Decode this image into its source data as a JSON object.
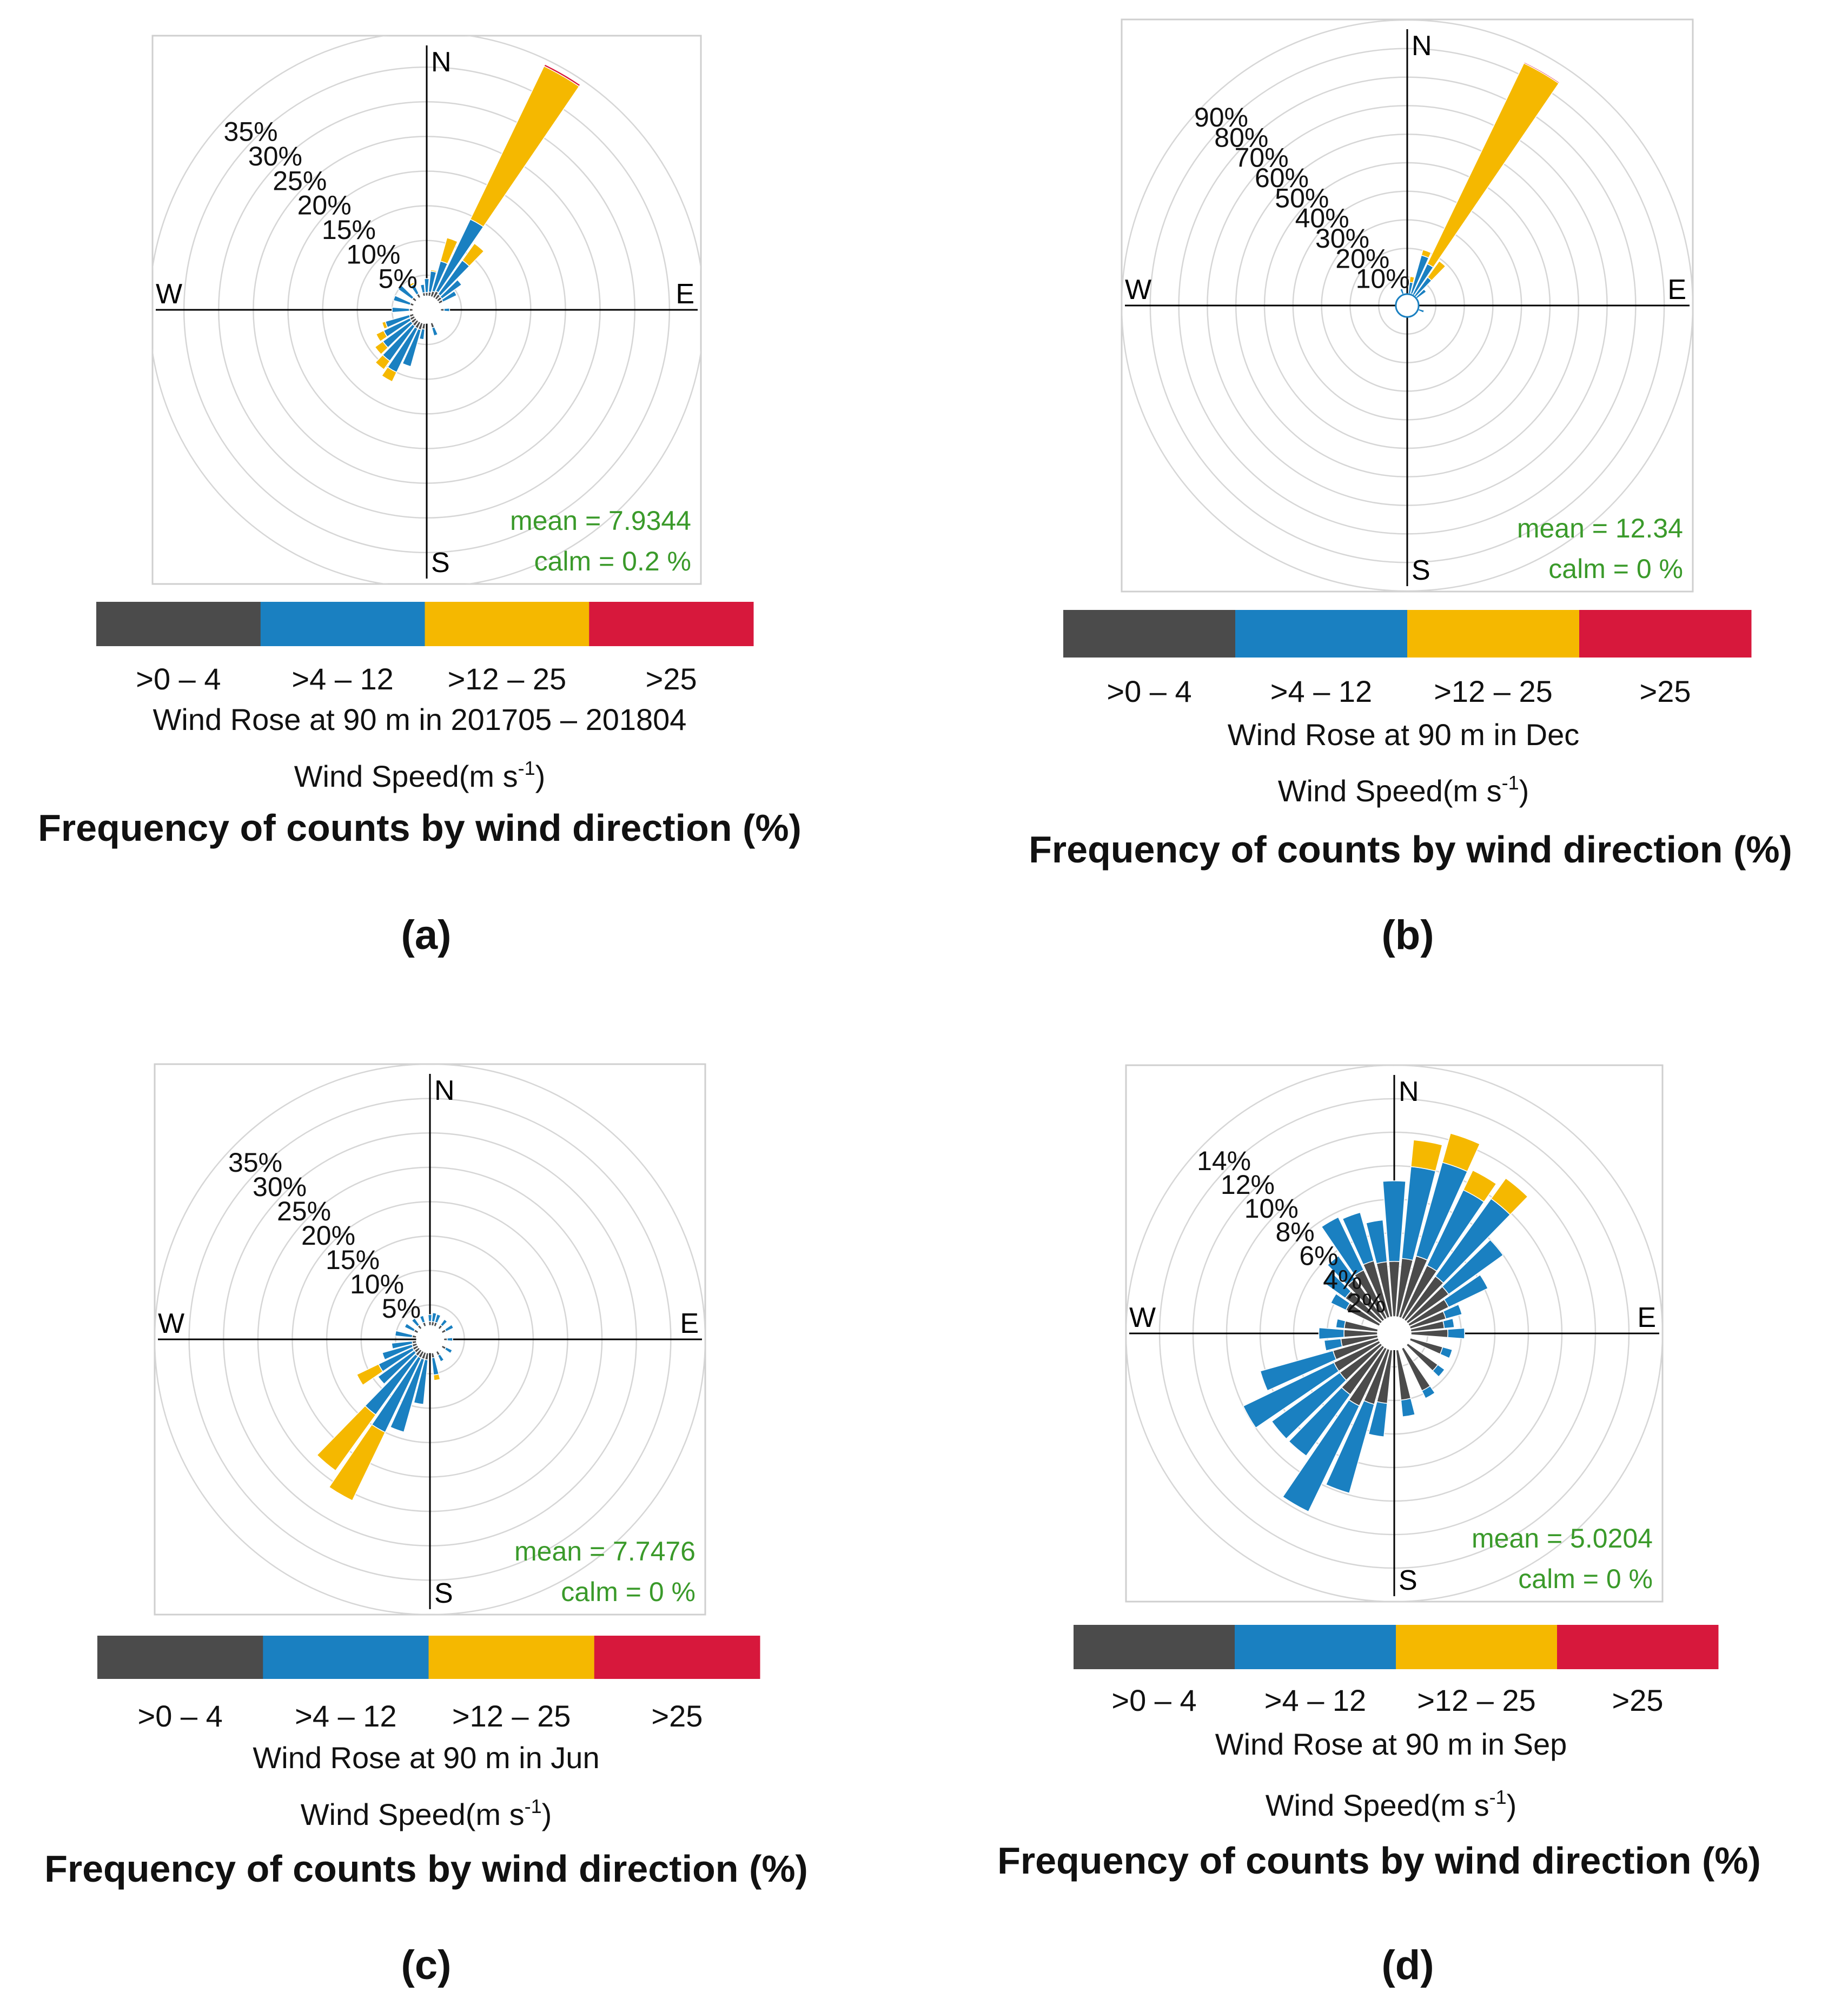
{
  "colors": {
    "speed_bins": [
      "#4b4b4b",
      "#1a80c1",
      "#f5b800",
      "#d7183c"
    ],
    "mean_text": "#3a9a2a",
    "grid": "#d6d6d6",
    "axis": "#000000"
  },
  "chart_data": [
    {
      "type": "wind-rose",
      "panel_label": "(a)",
      "title": "Wind Rose at 90 m in 201705 – 201804",
      "footer": "Frequency of counts by wind direction (%)",
      "legend_title_text": "Wind Speed(m s",
      "legend_title_sup": "-1",
      "legend_title_end": ")",
      "legend": [
        ">0 – 4",
        ">4 – 12",
        ">12 – 25",
        ">25"
      ],
      "directions": [
        "N",
        "E",
        "S",
        "W"
      ],
      "mean_label": "mean  =  7.9344",
      "calm_label": "calm =  0.2 %",
      "ring_labels": [
        "5%",
        "10%",
        "15%",
        "20%",
        "25%",
        "30%",
        "35%"
      ],
      "ring_step": 5,
      "rmax": 40,
      "calm_radius": 2.0,
      "petals": [
        {
          "dir": 0,
          "values": [
            0.5,
            2.0,
            0.0,
            0.0
          ]
        },
        {
          "dir": 10,
          "values": [
            0.6,
            3.0,
            0.2,
            0.0
          ]
        },
        {
          "dir": 20,
          "values": [
            0.8,
            4.5,
            3.5,
            0.0
          ]
        },
        {
          "dir": 30,
          "values": [
            1.0,
            11.5,
            24.5,
            0.3
          ]
        },
        {
          "dir": 40,
          "values": [
            0.8,
            6.0,
            3.0,
            0.0
          ]
        },
        {
          "dir": 50,
          "values": [
            0.7,
            3.5,
            0.0,
            0.0
          ]
        },
        {
          "dir": 60,
          "values": [
            0.6,
            2.2,
            0.0,
            0.0
          ]
        },
        {
          "dir": 90,
          "values": [
            0.5,
            0.8,
            0.0,
            0.0
          ]
        },
        {
          "dir": 160,
          "values": [
            0.7,
            1.2,
            0.0,
            0.0
          ]
        },
        {
          "dir": 190,
          "values": [
            0.8,
            1.5,
            0.0,
            0.0
          ]
        },
        {
          "dir": 200,
          "values": [
            1.0,
            5.5,
            0.0,
            0.0
          ]
        },
        {
          "dir": 210,
          "values": [
            1.0,
            7.0,
            1.5,
            0.0
          ]
        },
        {
          "dir": 220,
          "values": [
            0.9,
            6.2,
            1.5,
            0.0
          ]
        },
        {
          "dir": 230,
          "values": [
            0.8,
            5.0,
            1.4,
            0.0
          ]
        },
        {
          "dir": 240,
          "values": [
            0.7,
            4.2,
            1.2,
            0.0
          ]
        },
        {
          "dir": 250,
          "values": [
            0.6,
            3.6,
            0.5,
            0.0
          ]
        },
        {
          "dir": 270,
          "values": [
            0.5,
            2.5,
            0.0,
            0.0
          ]
        },
        {
          "dir": 290,
          "values": [
            0.5,
            2.5,
            0.0,
            0.0
          ]
        },
        {
          "dir": 310,
          "values": [
            0.6,
            2.5,
            0.0,
            0.0
          ]
        },
        {
          "dir": 330,
          "values": [
            0.6,
            1.5,
            0.3,
            0.0
          ]
        },
        {
          "dir": 350,
          "values": [
            0.5,
            1.2,
            0.0,
            0.0
          ]
        }
      ]
    },
    {
      "type": "wind-rose",
      "panel_label": "(b)",
      "title": "Wind Rose at 90 m in Dec",
      "footer": "Frequency of counts by wind direction (%)",
      "legend_title_text": "Wind Speed(m s",
      "legend_title_sup": "-1",
      "legend_title_end": ")",
      "legend": [
        ">0 – 4",
        ">4 – 12",
        ">12 – 25",
        ">25"
      ],
      "directions": [
        "N",
        "E",
        "S",
        "W"
      ],
      "mean_label": "mean  =  12.34",
      "calm_label": "calm =  0 %",
      "ring_labels": [
        "10%",
        "20%",
        "30%",
        "40%",
        "50%",
        "60%",
        "70%",
        "80%",
        "90%"
      ],
      "ring_step": 10,
      "rmax": 100,
      "calm_radius": 4.0,
      "petals": [
        {
          "dir": 10,
          "values": [
            0.2,
            4.0,
            2.0,
            0.0
          ]
        },
        {
          "dir": 20,
          "values": [
            0.3,
            14.0,
            2.0,
            0.0
          ]
        },
        {
          "dir": 30,
          "values": [
            0.2,
            12.0,
            78.0,
            0.4
          ]
        },
        {
          "dir": 40,
          "values": [
            0.2,
            8.0,
            7.0,
            0.0
          ]
        },
        {
          "dir": 50,
          "values": [
            0.2,
            4.0,
            0.0,
            0.0
          ]
        },
        {
          "dir": 110,
          "values": [
            0.2,
            2.0,
            0.0,
            0.0
          ]
        },
        {
          "dir": 340,
          "values": [
            0.2,
            2.0,
            0.0,
            0.0
          ]
        }
      ]
    },
    {
      "type": "wind-rose",
      "panel_label": "(c)",
      "title": "Wind Rose at 90 m in Jun",
      "footer": "Frequency of counts by wind direction (%)",
      "legend_title_text": "Wind Speed(m s",
      "legend_title_sup": "-1",
      "legend_title_end": ")",
      "legend": [
        ">0 – 4",
        ">4 – 12",
        ">12 – 25",
        ">25"
      ],
      "directions": [
        "N",
        "E",
        "S",
        "W"
      ],
      "mean_label": "mean  =  7.7476",
      "calm_label": "calm =  0 %",
      "ring_labels": [
        "5%",
        "10%",
        "15%",
        "20%",
        "25%",
        "30%",
        "35%"
      ],
      "ring_step": 5,
      "rmax": 40,
      "calm_radius": 2.0,
      "petals": [
        {
          "dir": 0,
          "values": [
            0.6,
            1.0,
            0.0,
            0.0
          ]
        },
        {
          "dir": 10,
          "values": [
            0.6,
            1.3,
            0.0,
            0.0
          ]
        },
        {
          "dir": 20,
          "values": [
            0.6,
            1.2,
            0.0,
            0.0
          ]
        },
        {
          "dir": 40,
          "values": [
            0.6,
            1.0,
            0.0,
            0.0
          ]
        },
        {
          "dir": 60,
          "values": [
            0.6,
            1.2,
            0.0,
            0.0
          ]
        },
        {
          "dir": 90,
          "values": [
            0.5,
            0.8,
            0.0,
            0.0
          ]
        },
        {
          "dir": 120,
          "values": [
            0.6,
            1.0,
            0.0,
            0.0
          ]
        },
        {
          "dir": 150,
          "values": [
            0.6,
            1.0,
            0.0,
            0.0
          ]
        },
        {
          "dir": 170,
          "values": [
            0.7,
            2.5,
            0.8,
            0.0
          ]
        },
        {
          "dir": 190,
          "values": [
            1.0,
            6.5,
            0.0,
            0.0
          ]
        },
        {
          "dir": 200,
          "values": [
            1.0,
            11.0,
            0.0,
            0.0
          ]
        },
        {
          "dir": 210,
          "values": [
            1.0,
            12.0,
            11.0,
            0.0
          ]
        },
        {
          "dir": 220,
          "values": [
            1.0,
            10.5,
            10.0,
            0.0
          ]
        },
        {
          "dir": 230,
          "values": [
            0.8,
            6.5,
            0.0,
            0.0
          ]
        },
        {
          "dir": 240,
          "values": [
            0.8,
            5.5,
            3.5,
            0.0
          ]
        },
        {
          "dir": 250,
          "values": [
            0.7,
            4.5,
            0.0,
            0.0
          ]
        },
        {
          "dir": 260,
          "values": [
            0.6,
            3.0,
            0.0,
            0.0
          ]
        },
        {
          "dir": 280,
          "values": [
            0.6,
            2.5,
            0.0,
            0.0
          ]
        },
        {
          "dir": 300,
          "values": [
            0.6,
            1.5,
            0.0,
            0.0
          ]
        },
        {
          "dir": 320,
          "values": [
            0.6,
            1.2,
            0.0,
            0.0
          ]
        },
        {
          "dir": 340,
          "values": [
            0.6,
            1.0,
            0.0,
            0.0
          ]
        }
      ]
    },
    {
      "type": "wind-rose",
      "panel_label": "(d)",
      "title": "Wind Rose at 90 m in Sep",
      "footer": "Frequency of counts by wind direction (%)",
      "legend_title_text": "Wind Speed(m s",
      "legend_title_sup": "-1",
      "legend_title_end": ")",
      "legend": [
        ">0 – 4",
        ">4 – 12",
        ">12 – 25",
        ">25"
      ],
      "directions": [
        "N",
        "E",
        "S",
        "W"
      ],
      "mean_label": "mean  =  5.0204",
      "calm_label": "calm =  0 %",
      "ring_labels": [
        "2%",
        "4%",
        "6%",
        "8%",
        "10%",
        "12%",
        "14%"
      ],
      "ring_step": 2,
      "rmax": 16,
      "calm_radius": 1.0,
      "petals": [
        {
          "dir": 0,
          "values": [
            3.3,
            4.8,
            0.0,
            0.0
          ]
        },
        {
          "dir": 10,
          "values": [
            3.5,
            5.5,
            1.6,
            0.0
          ]
        },
        {
          "dir": 20,
          "values": [
            3.8,
            5.8,
            1.8,
            0.0
          ]
        },
        {
          "dir": 30,
          "values": [
            3.5,
            5.0,
            1.3,
            0.0
          ]
        },
        {
          "dir": 40,
          "values": [
            3.2,
            5.7,
            1.5,
            0.0
          ]
        },
        {
          "dir": 50,
          "values": [
            3.0,
            4.0,
            0.0,
            0.0
          ]
        },
        {
          "dir": 60,
          "values": [
            2.6,
            2.6,
            0.0,
            0.0
          ]
        },
        {
          "dir": 70,
          "values": [
            2.2,
            1.0,
            0.0,
            0.0
          ]
        },
        {
          "dir": 80,
          "values": [
            2.0,
            0.6,
            0.0,
            0.0
          ]
        },
        {
          "dir": 90,
          "values": [
            2.2,
            1.0,
            0.0,
            0.0
          ]
        },
        {
          "dir": 110,
          "values": [
            2.0,
            0.6,
            0.0,
            0.0
          ]
        },
        {
          "dir": 130,
          "values": [
            2.2,
            0.5,
            0.0,
            0.0
          ]
        },
        {
          "dir": 150,
          "values": [
            2.8,
            0.5,
            0.0,
            0.0
          ]
        },
        {
          "dir": 170,
          "values": [
            3.0,
            1.0,
            0.0,
            0.0
          ]
        },
        {
          "dir": 190,
          "values": [
            3.2,
            2.0,
            0.0,
            0.0
          ]
        },
        {
          "dir": 200,
          "values": [
            3.4,
            5.5,
            0.0,
            0.0
          ]
        },
        {
          "dir": 210,
          "values": [
            3.8,
            7.0,
            0.0,
            0.0
          ]
        },
        {
          "dir": 220,
          "values": [
            3.5,
            4.5,
            0.0,
            0.0
          ]
        },
        {
          "dir": 230,
          "values": [
            3.0,
            5.0,
            0.0,
            0.0
          ]
        },
        {
          "dir": 240,
          "values": [
            3.0,
            6.0,
            0.0,
            0.0
          ]
        },
        {
          "dir": 250,
          "values": [
            2.8,
            4.5,
            0.0,
            0.0
          ]
        },
        {
          "dir": 260,
          "values": [
            2.2,
            1.0,
            0.0,
            0.0
          ]
        },
        {
          "dir": 270,
          "values": [
            2.0,
            1.5,
            0.0,
            0.0
          ]
        },
        {
          "dir": 280,
          "values": [
            2.0,
            0.5,
            0.0,
            0.0
          ]
        },
        {
          "dir": 300,
          "values": [
            2.2,
            1.0,
            0.0,
            0.0
          ]
        },
        {
          "dir": 310,
          "values": [
            2.6,
            1.6,
            0.0,
            0.0
          ]
        },
        {
          "dir": 320,
          "values": [
            3.0,
            1.7,
            0.0,
            0.0
          ]
        },
        {
          "dir": 330,
          "values": [
            3.2,
            3.5,
            0.0,
            0.0
          ]
        },
        {
          "dir": 340,
          "values": [
            3.5,
            3.0,
            0.0,
            0.0
          ]
        },
        {
          "dir": 350,
          "values": [
            3.3,
            2.5,
            0.0,
            0.0
          ]
        }
      ]
    }
  ]
}
